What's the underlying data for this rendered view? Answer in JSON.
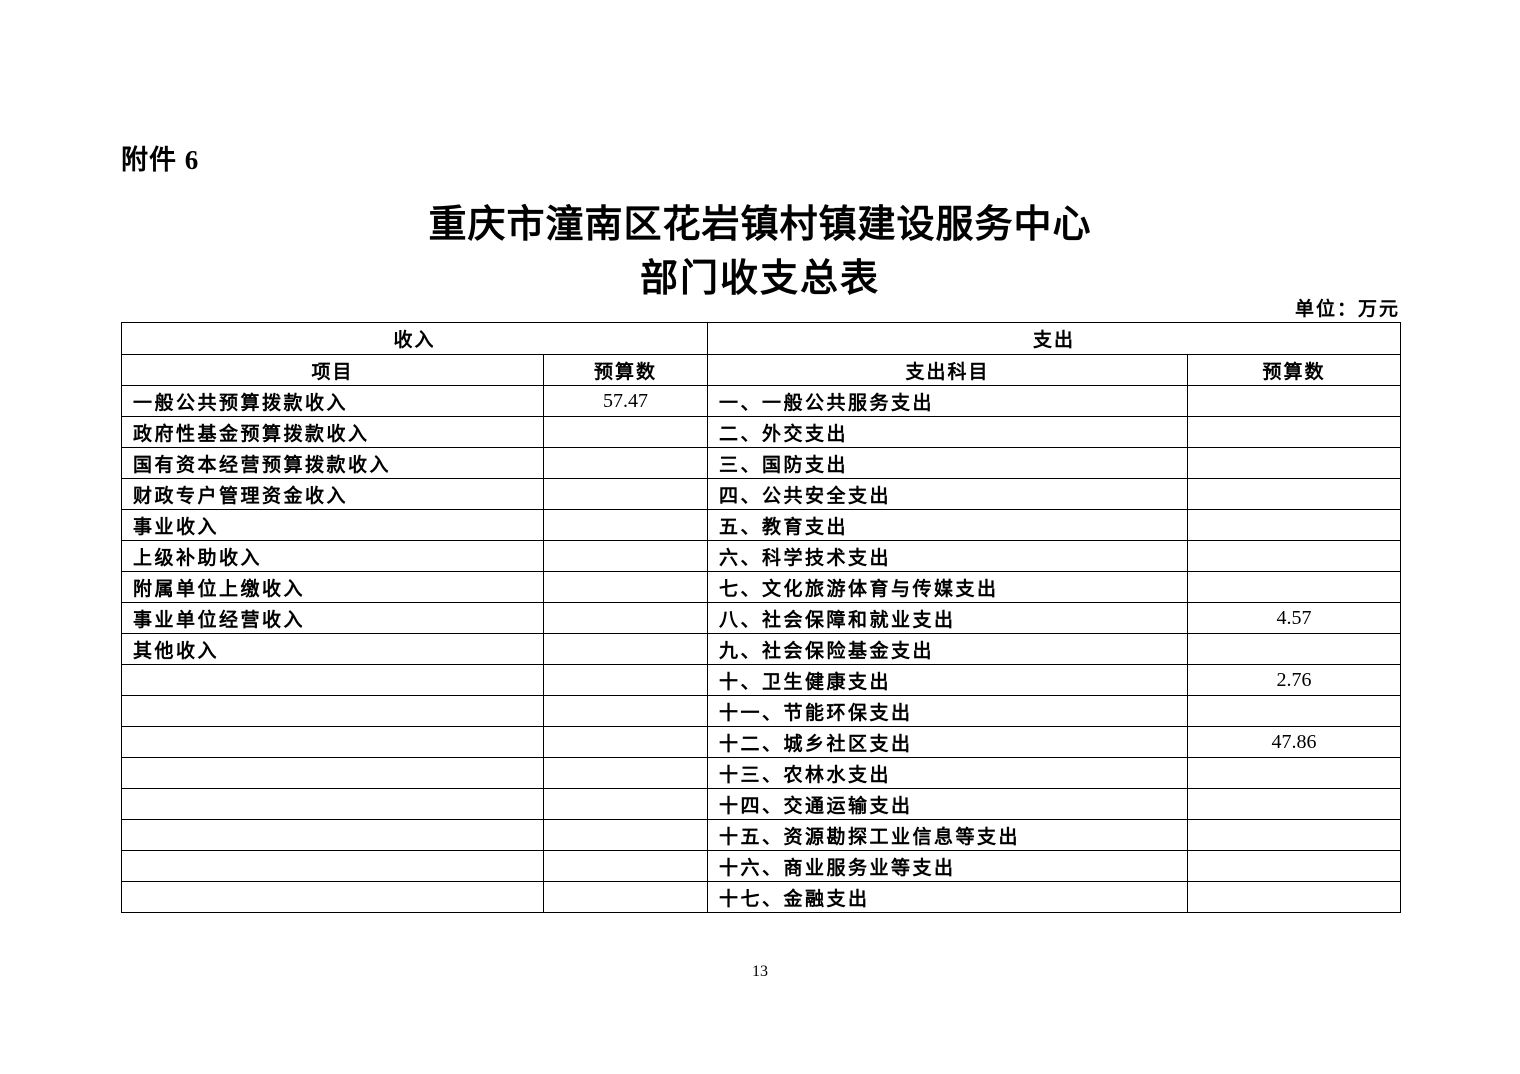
{
  "page": {
    "attachment_label": "附件 6",
    "title_line1": "重庆市潼南区花岩镇村镇建设服务中心",
    "title_line2": "部门收支总表",
    "unit_label": "单位：万元",
    "page_number": "13"
  },
  "table": {
    "income_section_header": "收入",
    "expenditure_section_header": "支出",
    "income_item_header": "项目",
    "income_budget_header": "预算数",
    "expenditure_item_header": "支出科目",
    "expenditure_budget_header": "预算数",
    "rows": [
      {
        "income_item": "一般公共预算拨款收入",
        "income_budget": "57.47",
        "expenditure_item": "一、一般公共服务支出",
        "expenditure_budget": ""
      },
      {
        "income_item": "政府性基金预算拨款收入",
        "income_budget": "",
        "expenditure_item": "二、外交支出",
        "expenditure_budget": ""
      },
      {
        "income_item": "国有资本经营预算拨款收入",
        "income_budget": "",
        "expenditure_item": "三、国防支出",
        "expenditure_budget": ""
      },
      {
        "income_item": "财政专户管理资金收入",
        "income_budget": "",
        "expenditure_item": "四、公共安全支出",
        "expenditure_budget": ""
      },
      {
        "income_item": "事业收入",
        "income_budget": "",
        "expenditure_item": "五、教育支出",
        "expenditure_budget": ""
      },
      {
        "income_item": "上级补助收入",
        "income_budget": "",
        "expenditure_item": "六、科学技术支出",
        "expenditure_budget": ""
      },
      {
        "income_item": "附属单位上缴收入",
        "income_budget": "",
        "expenditure_item": "七、文化旅游体育与传媒支出",
        "expenditure_budget": ""
      },
      {
        "income_item": "事业单位经营收入",
        "income_budget": "",
        "expenditure_item": "八、社会保障和就业支出",
        "expenditure_budget": "4.57"
      },
      {
        "income_item": "其他收入",
        "income_budget": "",
        "expenditure_item": "九、社会保险基金支出",
        "expenditure_budget": ""
      },
      {
        "income_item": "",
        "income_budget": "",
        "expenditure_item": "十、卫生健康支出",
        "expenditure_budget": "2.76"
      },
      {
        "income_item": "",
        "income_budget": "",
        "expenditure_item": "十一、节能环保支出",
        "expenditure_budget": ""
      },
      {
        "income_item": "",
        "income_budget": "",
        "expenditure_item": "十二、城乡社区支出",
        "expenditure_budget": "47.86"
      },
      {
        "income_item": "",
        "income_budget": "",
        "expenditure_item": "十三、农林水支出",
        "expenditure_budget": ""
      },
      {
        "income_item": "",
        "income_budget": "",
        "expenditure_item": "十四、交通运输支出",
        "expenditure_budget": ""
      },
      {
        "income_item": "",
        "income_budget": "",
        "expenditure_item": "十五、资源勘探工业信息等支出",
        "expenditure_budget": ""
      },
      {
        "income_item": "",
        "income_budget": "",
        "expenditure_item": "十六、商业服务业等支出",
        "expenditure_budget": ""
      },
      {
        "income_item": "",
        "income_budget": "",
        "expenditure_item": "十七、金融支出",
        "expenditure_budget": ""
      }
    ]
  }
}
